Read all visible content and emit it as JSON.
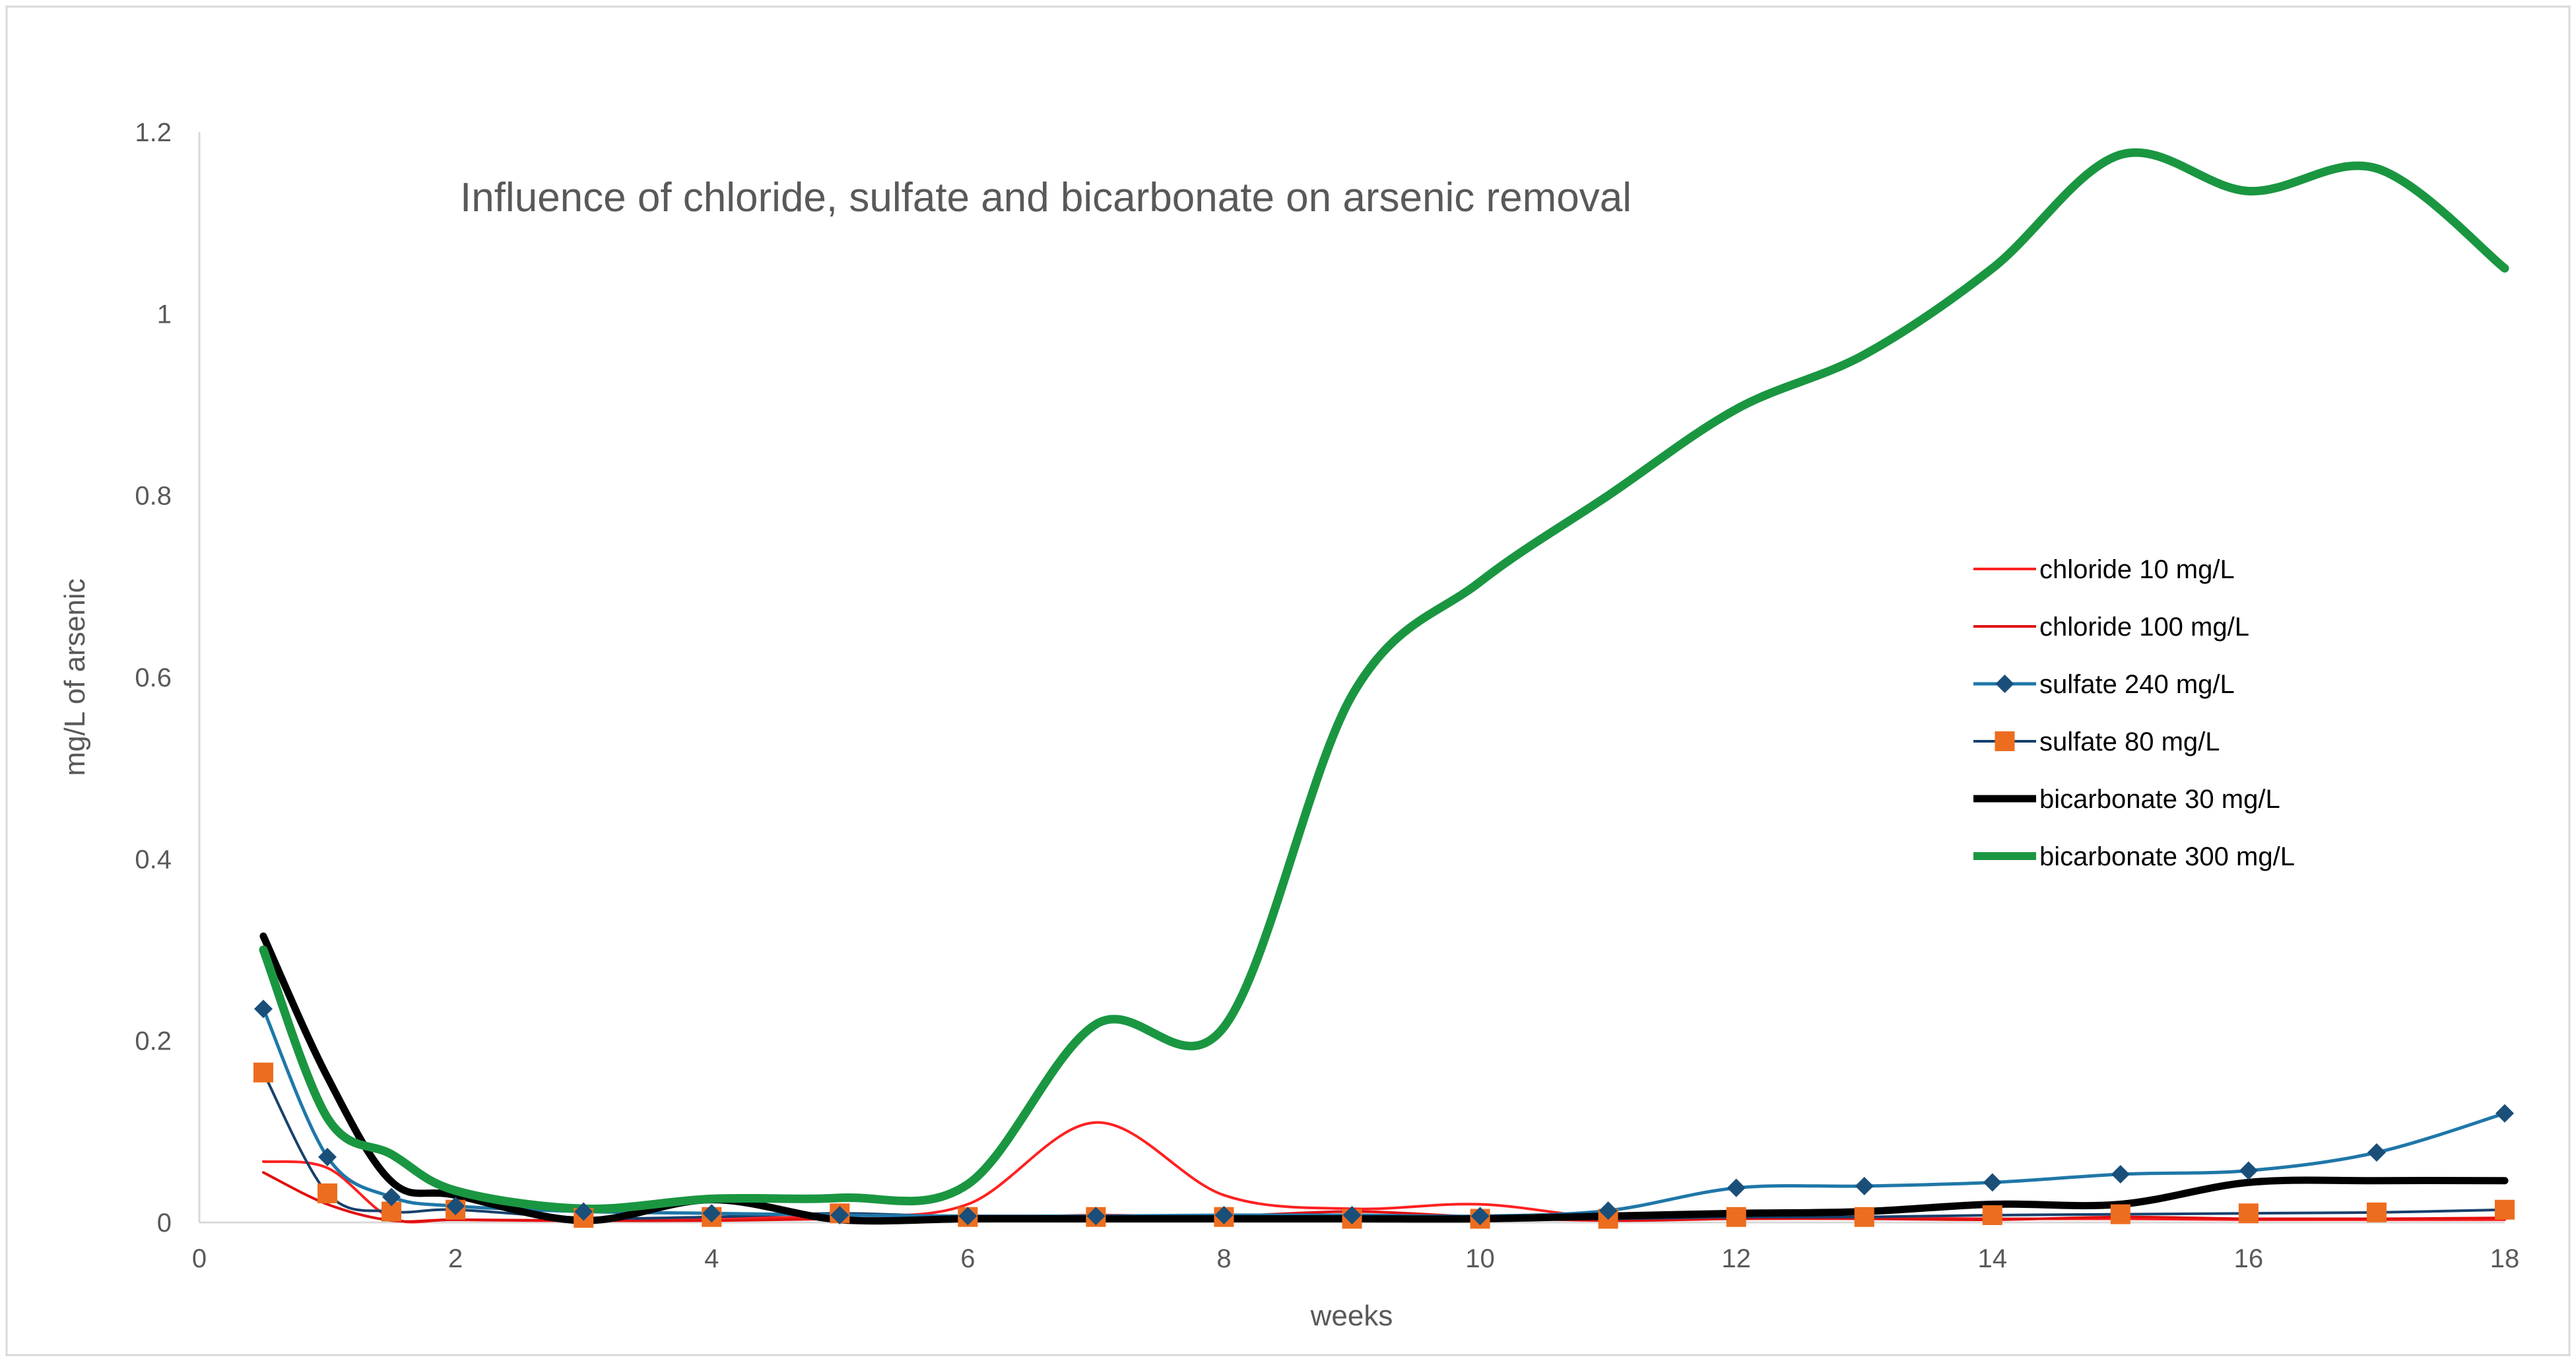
{
  "chart_data": {
    "type": "line",
    "title": "Influence of chloride, sulfate and bicarbonate on arsenic removal",
    "xlabel": "weeks",
    "ylabel": "mg/L of arsenic",
    "xlim": [
      0,
      18
    ],
    "ylim": [
      0,
      1.2
    ],
    "x_ticks": [
      "0",
      "2",
      "4",
      "6",
      "8",
      "10",
      "12",
      "14",
      "16",
      "18"
    ],
    "y_ticks": [
      "0",
      "0.2",
      "0.4",
      "0.6",
      "0.8",
      "1",
      "1.2"
    ],
    "grid": false,
    "legend_position": "right",
    "series": [
      {
        "name": "chloride 10 mg/L",
        "color": "#ff2020",
        "marker": "none",
        "x": [
          0.5,
          1,
          1.5,
          2,
          3,
          4,
          5,
          6,
          7,
          8,
          9,
          10,
          11,
          12,
          13,
          14,
          15,
          16,
          17,
          18
        ],
        "y": [
          0.067,
          0.06,
          0.005,
          0.003,
          0.002,
          0.005,
          0.007,
          0.02,
          0.11,
          0.03,
          0.015,
          0.02,
          0.005,
          0.006,
          0.005,
          0.004,
          0.004,
          0.003,
          0.003,
          0.003
        ]
      },
      {
        "name": "chloride 100 mg/L",
        "color": "#e01010",
        "marker": "none",
        "x": [
          0.5,
          1,
          1.5,
          2,
          3,
          4,
          5,
          6,
          7,
          8,
          9,
          10,
          11,
          12,
          13,
          14,
          15,
          16,
          17,
          18
        ],
        "y": [
          0.055,
          0.02,
          0.002,
          0.003,
          0.002,
          0.002,
          0.004,
          0.005,
          0.008,
          0.007,
          0.012,
          0.006,
          0.002,
          0.004,
          0.004,
          0.003,
          0.006,
          0.004,
          0.004,
          0.005
        ]
      },
      {
        "name": "sulfate 240 mg/L",
        "color": "#1f77a8",
        "marker": "diamond",
        "marker_color": "#1a4f7a",
        "x": [
          0.5,
          1,
          1.5,
          2,
          3,
          4,
          5,
          6,
          7,
          8,
          9,
          10,
          11,
          12,
          13,
          14,
          15,
          16,
          17,
          18
        ],
        "y": [
          0.235,
          0.072,
          0.028,
          0.018,
          0.012,
          0.01,
          0.008,
          0.007,
          0.007,
          0.008,
          0.008,
          0.007,
          0.013,
          0.038,
          0.04,
          0.044,
          0.053,
          0.057,
          0.077,
          0.12
        ]
      },
      {
        "name": "sulfate 80 mg/L",
        "color": "#17406d",
        "marker": "square",
        "marker_color": "#ed6d1f",
        "x": [
          0.5,
          1,
          1.5,
          2,
          3,
          4,
          5,
          6,
          7,
          8,
          9,
          10,
          11,
          12,
          13,
          14,
          15,
          16,
          17,
          18
        ],
        "y": [
          0.165,
          0.032,
          0.012,
          0.014,
          0.005,
          0.006,
          0.01,
          0.006,
          0.006,
          0.006,
          0.004,
          0.004,
          0.004,
          0.006,
          0.006,
          0.008,
          0.009,
          0.01,
          0.011,
          0.014
        ]
      },
      {
        "name": "bicarbonate 30 mg/L",
        "color": "#000000",
        "marker": "none",
        "x": [
          0.5,
          1,
          1.5,
          2,
          3,
          4,
          5,
          6,
          7,
          8,
          9,
          10,
          11,
          12,
          13,
          14,
          15,
          16,
          17,
          18
        ],
        "y": [
          0.315,
          0.16,
          0.045,
          0.03,
          0.002,
          0.025,
          0.003,
          0.004,
          0.004,
          0.004,
          0.004,
          0.004,
          0.007,
          0.01,
          0.012,
          0.02,
          0.02,
          0.044,
          0.046,
          0.046
        ]
      },
      {
        "name": "bicarbonate 300 mg/L",
        "color": "#1a9641",
        "marker": "none",
        "x": [
          0.5,
          1,
          1.5,
          2,
          3,
          4,
          5,
          6,
          7,
          8,
          9,
          10,
          11,
          12,
          13,
          14,
          15,
          16,
          17,
          18
        ],
        "y": [
          0.3,
          0.115,
          0.075,
          0.035,
          0.015,
          0.026,
          0.027,
          0.042,
          0.218,
          0.215,
          0.58,
          0.705,
          0.8,
          0.895,
          0.955,
          1.05,
          1.175,
          1.135,
          1.16,
          1.05
        ]
      }
    ]
  }
}
